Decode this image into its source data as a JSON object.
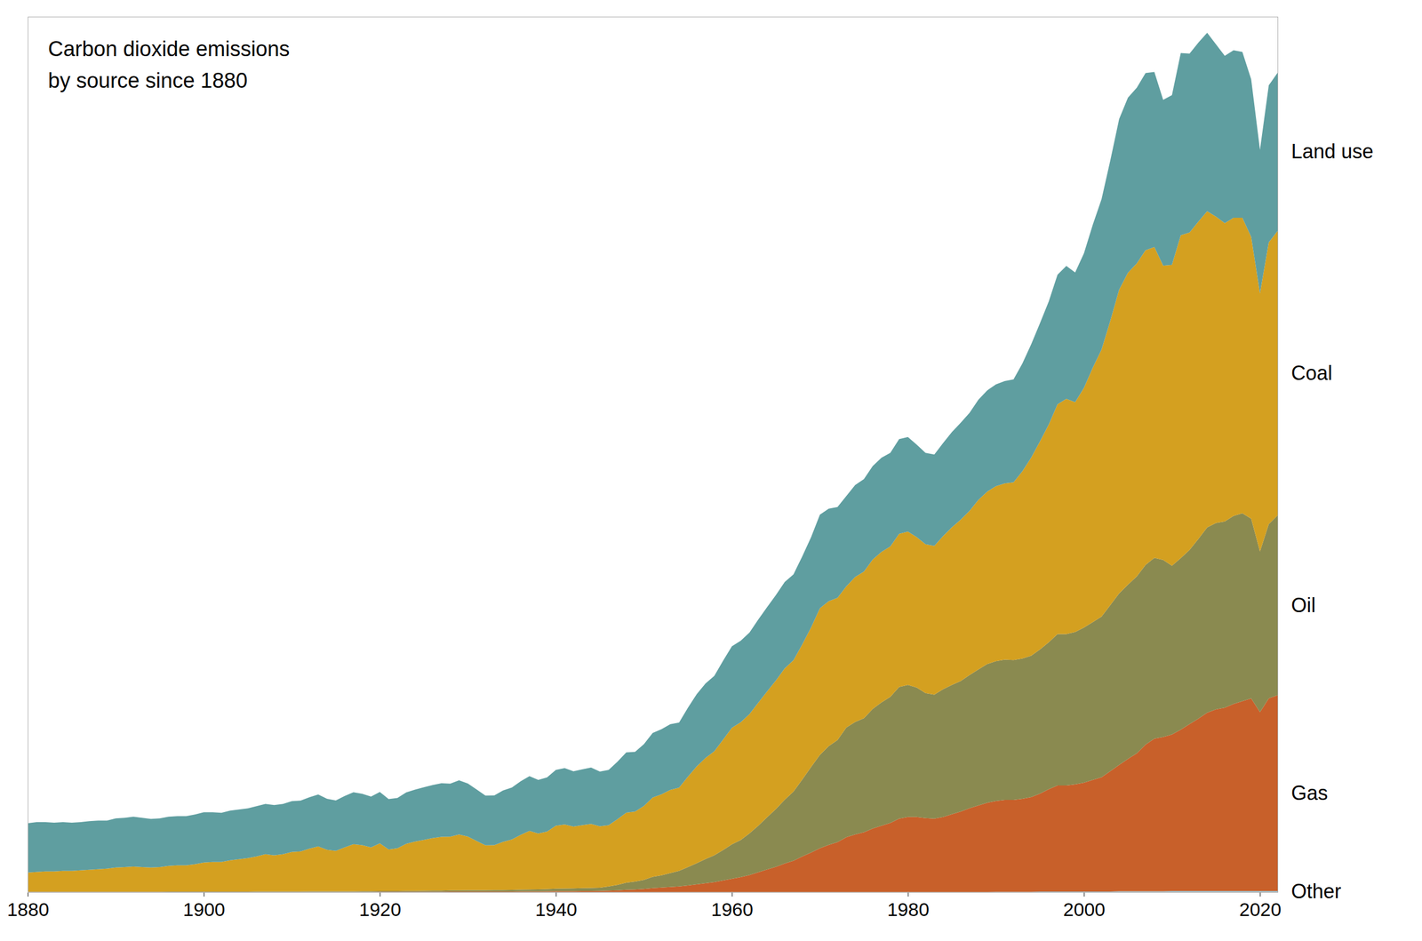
{
  "chart_data": {
    "type": "area",
    "title": "Carbon dioxide emissions",
    "subtitle": "by source since 1880",
    "stacked": true,
    "grid": false,
    "tick_labels": "x",
    "xlim": [
      1880,
      2022
    ],
    "xticks": [
      1880,
      1900,
      1920,
      1940,
      1960,
      1980,
      2000,
      2020
    ],
    "ylim": [
      0,
      16
    ],
    "x": [
      1880,
      1881,
      1882,
      1883,
      1884,
      1885,
      1886,
      1887,
      1888,
      1889,
      1890,
      1891,
      1892,
      1893,
      1894,
      1895,
      1896,
      1897,
      1898,
      1899,
      1900,
      1901,
      1902,
      1903,
      1904,
      1905,
      1906,
      1907,
      1908,
      1909,
      1910,
      1911,
      1912,
      1913,
      1914,
      1915,
      1916,
      1917,
      1918,
      1919,
      1920,
      1921,
      1922,
      1923,
      1924,
      1925,
      1926,
      1927,
      1928,
      1929,
      1930,
      1931,
      1932,
      1933,
      1934,
      1935,
      1936,
      1937,
      1938,
      1939,
      1940,
      1941,
      1942,
      1943,
      1944,
      1945,
      1946,
      1947,
      1948,
      1949,
      1950,
      1951,
      1952,
      1953,
      1954,
      1955,
      1956,
      1957,
      1958,
      1959,
      1960,
      1961,
      1962,
      1963,
      1964,
      1965,
      1966,
      1967,
      1968,
      1969,
      1970,
      1971,
      1972,
      1973,
      1974,
      1975,
      1976,
      1977,
      1978,
      1979,
      1980,
      1981,
      1982,
      1983,
      1984,
      1985,
      1986,
      1987,
      1988,
      1989,
      1990,
      1991,
      1992,
      1993,
      1994,
      1995,
      1996,
      1997,
      1998,
      1999,
      2000,
      2001,
      2002,
      2003,
      2004,
      2005,
      2006,
      2007,
      2008,
      2009,
      2010,
      2011,
      2012,
      2013,
      2014,
      2015,
      2016,
      2017,
      2018,
      2019,
      2020,
      2021,
      2022
    ],
    "series": [
      {
        "name": "Other",
        "color": "#a8c5d0",
        "values": [
          0.003,
          0.003,
          0.003,
          0.003,
          0.003,
          0.003,
          0.003,
          0.003,
          0.003,
          0.003,
          0.003,
          0.003,
          0.003,
          0.003,
          0.003,
          0.003,
          0.003,
          0.003,
          0.003,
          0.003,
          0.003,
          0.003,
          0.003,
          0.003,
          0.003,
          0.003,
          0.003,
          0.003,
          0.003,
          0.003,
          0.003,
          0.003,
          0.003,
          0.003,
          0.003,
          0.003,
          0.003,
          0.003,
          0.003,
          0.003,
          0.003,
          0.003,
          0.003,
          0.003,
          0.003,
          0.003,
          0.003,
          0.003,
          0.003,
          0.003,
          0.003,
          0.003,
          0.003,
          0.003,
          0.003,
          0.003,
          0.003,
          0.003,
          0.003,
          0.003,
          0.003,
          0.003,
          0.003,
          0.003,
          0.003,
          0.003,
          0.003,
          0.003,
          0.003,
          0.003,
          0.003,
          0.003,
          0.003,
          0.003,
          0.003,
          0.003,
          0.003,
          0.003,
          0.003,
          0.003,
          0.003,
          0.003,
          0.003,
          0.003,
          0.003,
          0.003,
          0.003,
          0.003,
          0.003,
          0.003,
          0.003,
          0.003,
          0.003,
          0.003,
          0.003,
          0.003,
          0.003,
          0.003,
          0.003,
          0.003,
          0.003,
          0.003,
          0.003,
          0.003,
          0.003,
          0.003,
          0.003,
          0.003,
          0.003,
          0.003,
          0.005,
          0.005,
          0.005,
          0.005,
          0.005,
          0.01,
          0.01,
          0.01,
          0.01,
          0.01,
          0.01,
          0.01,
          0.01,
          0.01,
          0.015,
          0.015,
          0.015,
          0.015,
          0.015,
          0.015,
          0.02,
          0.02,
          0.02,
          0.02,
          0.02,
          0.02,
          0.02,
          0.02,
          0.02,
          0.02,
          0.02,
          0.02,
          0.02
        ]
      },
      {
        "name": "Gas",
        "color": "#c8602a",
        "values": [
          0.003,
          0.003,
          0.003,
          0.003,
          0.003,
          0.003,
          0.003,
          0.003,
          0.003,
          0.003,
          0.003,
          0.003,
          0.003,
          0.003,
          0.003,
          0.003,
          0.003,
          0.003,
          0.003,
          0.003,
          0.003,
          0.003,
          0.003,
          0.003,
          0.003,
          0.003,
          0.003,
          0.003,
          0.003,
          0.003,
          0.003,
          0.003,
          0.003,
          0.003,
          0.003,
          0.003,
          0.003,
          0.003,
          0.003,
          0.003,
          0.005,
          0.005,
          0.005,
          0.005,
          0.005,
          0.005,
          0.005,
          0.005,
          0.007,
          0.007,
          0.007,
          0.007,
          0.007,
          0.008,
          0.008,
          0.008,
          0.01,
          0.01,
          0.01,
          0.012,
          0.015,
          0.015,
          0.015,
          0.018,
          0.018,
          0.02,
          0.025,
          0.03,
          0.04,
          0.045,
          0.055,
          0.07,
          0.08,
          0.09,
          0.1,
          0.12,
          0.14,
          0.16,
          0.18,
          0.21,
          0.24,
          0.27,
          0.31,
          0.36,
          0.41,
          0.46,
          0.52,
          0.57,
          0.65,
          0.72,
          0.8,
          0.86,
          0.91,
          1.0,
          1.05,
          1.09,
          1.16,
          1.21,
          1.26,
          1.34,
          1.37,
          1.37,
          1.35,
          1.34,
          1.37,
          1.42,
          1.47,
          1.53,
          1.58,
          1.63,
          1.66,
          1.68,
          1.68,
          1.7,
          1.73,
          1.79,
          1.87,
          1.94,
          1.94,
          1.96,
          1.99,
          2.04,
          2.09,
          2.2,
          2.31,
          2.42,
          2.52,
          2.68,
          2.79,
          2.82,
          2.86,
          2.95,
          3.05,
          3.15,
          3.26,
          3.32,
          3.35,
          3.42,
          3.47,
          3.52,
          3.27,
          3.52,
          3.58
        ]
      },
      {
        "name": "Oil",
        "color": "#8a8a50",
        "values": [
          0.002,
          0.002,
          0.002,
          0.002,
          0.002,
          0.002,
          0.002,
          0.002,
          0.002,
          0.002,
          0.002,
          0.002,
          0.002,
          0.002,
          0.002,
          0.002,
          0.003,
          0.003,
          0.003,
          0.003,
          0.004,
          0.004,
          0.004,
          0.004,
          0.005,
          0.005,
          0.006,
          0.006,
          0.006,
          0.006,
          0.007,
          0.007,
          0.008,
          0.009,
          0.009,
          0.009,
          0.01,
          0.01,
          0.011,
          0.011,
          0.012,
          0.012,
          0.013,
          0.015,
          0.016,
          0.017,
          0.019,
          0.021,
          0.022,
          0.024,
          0.025,
          0.025,
          0.025,
          0.026,
          0.028,
          0.03,
          0.032,
          0.036,
          0.038,
          0.041,
          0.046,
          0.048,
          0.05,
          0.053,
          0.056,
          0.059,
          0.075,
          0.1,
          0.13,
          0.145,
          0.165,
          0.205,
          0.225,
          0.255,
          0.285,
          0.335,
          0.385,
          0.44,
          0.49,
          0.555,
          0.63,
          0.68,
          0.76,
          0.85,
          0.955,
          1.055,
          1.165,
          1.265,
          1.405,
          1.565,
          1.705,
          1.805,
          1.865,
          2.005,
          2.055,
          2.085,
          2.185,
          2.255,
          2.305,
          2.405,
          2.415,
          2.365,
          2.285,
          2.265,
          2.335,
          2.365,
          2.385,
          2.435,
          2.485,
          2.535,
          2.555,
          2.565,
          2.555,
          2.565,
          2.585,
          2.635,
          2.685,
          2.765,
          2.765,
          2.785,
          2.835,
          2.885,
          2.935,
          3.035,
          3.135,
          3.185,
          3.235,
          3.285,
          3.305,
          3.235,
          3.085,
          3.135,
          3.185,
          3.285,
          3.385,
          3.405,
          3.405,
          3.435,
          3.435,
          3.285,
          2.935,
          3.185,
          3.285
        ]
      },
      {
        "name": "Coal",
        "color": "#d4a020",
        "values": [
          0.35,
          0.36,
          0.37,
          0.37,
          0.38,
          0.38,
          0.39,
          0.4,
          0.41,
          0.42,
          0.44,
          0.45,
          0.46,
          0.45,
          0.44,
          0.45,
          0.47,
          0.48,
          0.48,
          0.5,
          0.53,
          0.54,
          0.54,
          0.57,
          0.59,
          0.61,
          0.64,
          0.68,
          0.66,
          0.68,
          0.72,
          0.73,
          0.78,
          0.82,
          0.76,
          0.74,
          0.8,
          0.86,
          0.84,
          0.8,
          0.87,
          0.76,
          0.78,
          0.86,
          0.9,
          0.93,
          0.96,
          0.98,
          0.98,
          1.02,
          0.98,
          0.9,
          0.82,
          0.82,
          0.88,
          0.92,
          1.0,
          1.07,
          1.02,
          1.05,
          1.15,
          1.17,
          1.13,
          1.15,
          1.17,
          1.12,
          1.12,
          1.2,
          1.28,
          1.28,
          1.35,
          1.45,
          1.48,
          1.52,
          1.52,
          1.65,
          1.77,
          1.85,
          1.9,
          2.02,
          2.13,
          2.15,
          2.18,
          2.25,
          2.3,
          2.35,
          2.4,
          2.4,
          2.47,
          2.55,
          2.68,
          2.65,
          2.6,
          2.58,
          2.65,
          2.68,
          2.73,
          2.75,
          2.75,
          2.8,
          2.8,
          2.75,
          2.72,
          2.72,
          2.8,
          2.88,
          2.95,
          3.0,
          3.1,
          3.15,
          3.2,
          3.22,
          3.25,
          3.42,
          3.62,
          3.8,
          3.98,
          4.2,
          4.3,
          4.2,
          4.38,
          4.65,
          4.88,
          5.2,
          5.55,
          5.7,
          5.72,
          5.75,
          5.68,
          5.38,
          5.5,
          5.9,
          5.8,
          5.8,
          5.78,
          5.6,
          5.45,
          5.45,
          5.4,
          5.15,
          4.72,
          5.15,
          5.2
        ]
      },
      {
        "name": "Land use",
        "color": "#5f9ea0",
        "values": [
          0.9,
          0.91,
          0.9,
          0.89,
          0.89,
          0.88,
          0.88,
          0.89,
          0.89,
          0.88,
          0.9,
          0.9,
          0.91,
          0.9,
          0.89,
          0.89,
          0.9,
          0.9,
          0.9,
          0.91,
          0.92,
          0.91,
          0.9,
          0.91,
          0.91,
          0.91,
          0.92,
          0.92,
          0.92,
          0.92,
          0.93,
          0.93,
          0.94,
          0.95,
          0.93,
          0.92,
          0.94,
          0.95,
          0.94,
          0.93,
          0.94,
          0.92,
          0.92,
          0.94,
          0.95,
          0.96,
          0.97,
          0.98,
          0.97,
          0.99,
          0.97,
          0.94,
          0.91,
          0.91,
          0.94,
          0.95,
          0.98,
          1.0,
          0.98,
          0.99,
          1.02,
          1.03,
          1.01,
          1.02,
          1.03,
          1.0,
          1.01,
          1.05,
          1.1,
          1.09,
          1.13,
          1.18,
          1.19,
          1.2,
          1.19,
          1.26,
          1.32,
          1.36,
          1.38,
          1.44,
          1.49,
          1.49,
          1.49,
          1.52,
          1.54,
          1.56,
          1.58,
          1.57,
          1.61,
          1.65,
          1.71,
          1.69,
          1.66,
          1.65,
          1.68,
          1.69,
          1.71,
          1.72,
          1.71,
          1.73,
          1.73,
          1.69,
          1.67,
          1.67,
          1.7,
          1.74,
          1.77,
          1.79,
          1.83,
          1.85,
          1.86,
          1.87,
          1.88,
          1.97,
          2.07,
          2.16,
          2.25,
          2.37,
          2.43,
          2.37,
          2.46,
          2.61,
          2.75,
          2.93,
          3.12,
          3.2,
          3.21,
          3.24,
          3.2,
          3.03,
          3.1,
          3.33,
          3.27,
          3.27,
          3.26,
          3.15,
          3.06,
          3.06,
          3.03,
          2.88,
          2.62,
          2.87,
          2.89
        ]
      }
    ]
  }
}
